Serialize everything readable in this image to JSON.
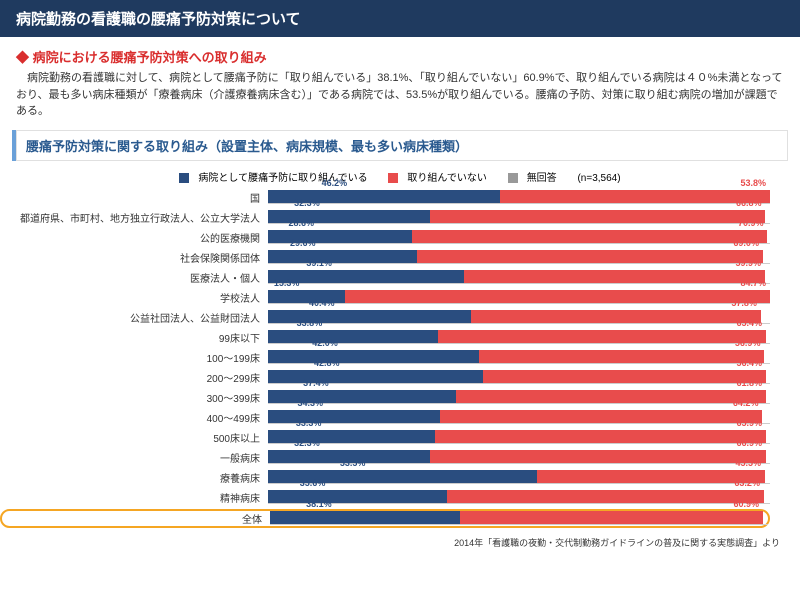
{
  "header": "病院勤務の看護職の腰痛予防対策について",
  "subtitle": "病院における腰痛予防対策への取り組み",
  "body": "　病院勤務の看護職に対して、病院として腰痛予防に「取り組んでいる」38.1%、「取り組んでいない」60.9%で、取り組んでいる病院は４０%未満となっており、最も多い病床種類が「療養病床（介護療養病床含む）」である病院では、53.5%が取り組んでいる。腰痛の予防、対策に取り組む病院の増加が課題である。",
  "section": "腰痛予防対策に関する取り組み（設置主体、病床規模、最も多い病床種類）",
  "legend": {
    "l1": "病院として腰痛予防に取り組んでいる",
    "l2": "取り組んでいない",
    "l3": "無回答",
    "n": "(n=3,564)"
  },
  "colors": {
    "blue": "#2a4d7f",
    "red": "#e84c4c",
    "gray": "#999999"
  },
  "rows": [
    {
      "label": "国",
      "v1": 46.2,
      "v2": 53.8
    },
    {
      "label": "都道府県、市町村、地方独立行政法人、公立大学法人",
      "v1": 32.3,
      "v2": 66.8
    },
    {
      "label": "公的医療機関",
      "v1": 28.6,
      "v2": 70.9
    },
    {
      "label": "社会保険関係団体",
      "v1": 29.6,
      "v2": 69.0
    },
    {
      "label": "医療法人・個人",
      "v1": 39.1,
      "v2": 59.9
    },
    {
      "label": "学校法人",
      "v1": 15.3,
      "v2": 84.7
    },
    {
      "label": "公益社団法人、公益財団法人",
      "v1": 40.4,
      "v2": 57.8
    },
    {
      "label": "99床以下",
      "v1": 33.8,
      "v2": 65.4
    },
    {
      "label": "100～199床",
      "v1": 42.0,
      "v2": 56.9
    },
    {
      "label": "200～299床",
      "v1": 42.8,
      "v2": 56.4
    },
    {
      "label": "300～399床",
      "v1": 37.4,
      "v2": 61.8
    },
    {
      "label": "400～499床",
      "v1": 34.3,
      "v2": 64.2
    },
    {
      "label": "500床以上",
      "v1": 33.3,
      "v2": 65.9
    },
    {
      "label": "一般病床",
      "v1": 32.3,
      "v2": 66.9
    },
    {
      "label": "療養病床",
      "v1": 53.5,
      "v2": 45.5
    },
    {
      "label": "精神病床",
      "v1": 35.6,
      "v2": 63.2
    },
    {
      "label": "全体",
      "v1": 38.1,
      "v2": 60.9,
      "hl": true
    }
  ],
  "footer": "2014年「看護職の夜勤・交代制勤務ガイドラインの普及に関する実態調査」より"
}
